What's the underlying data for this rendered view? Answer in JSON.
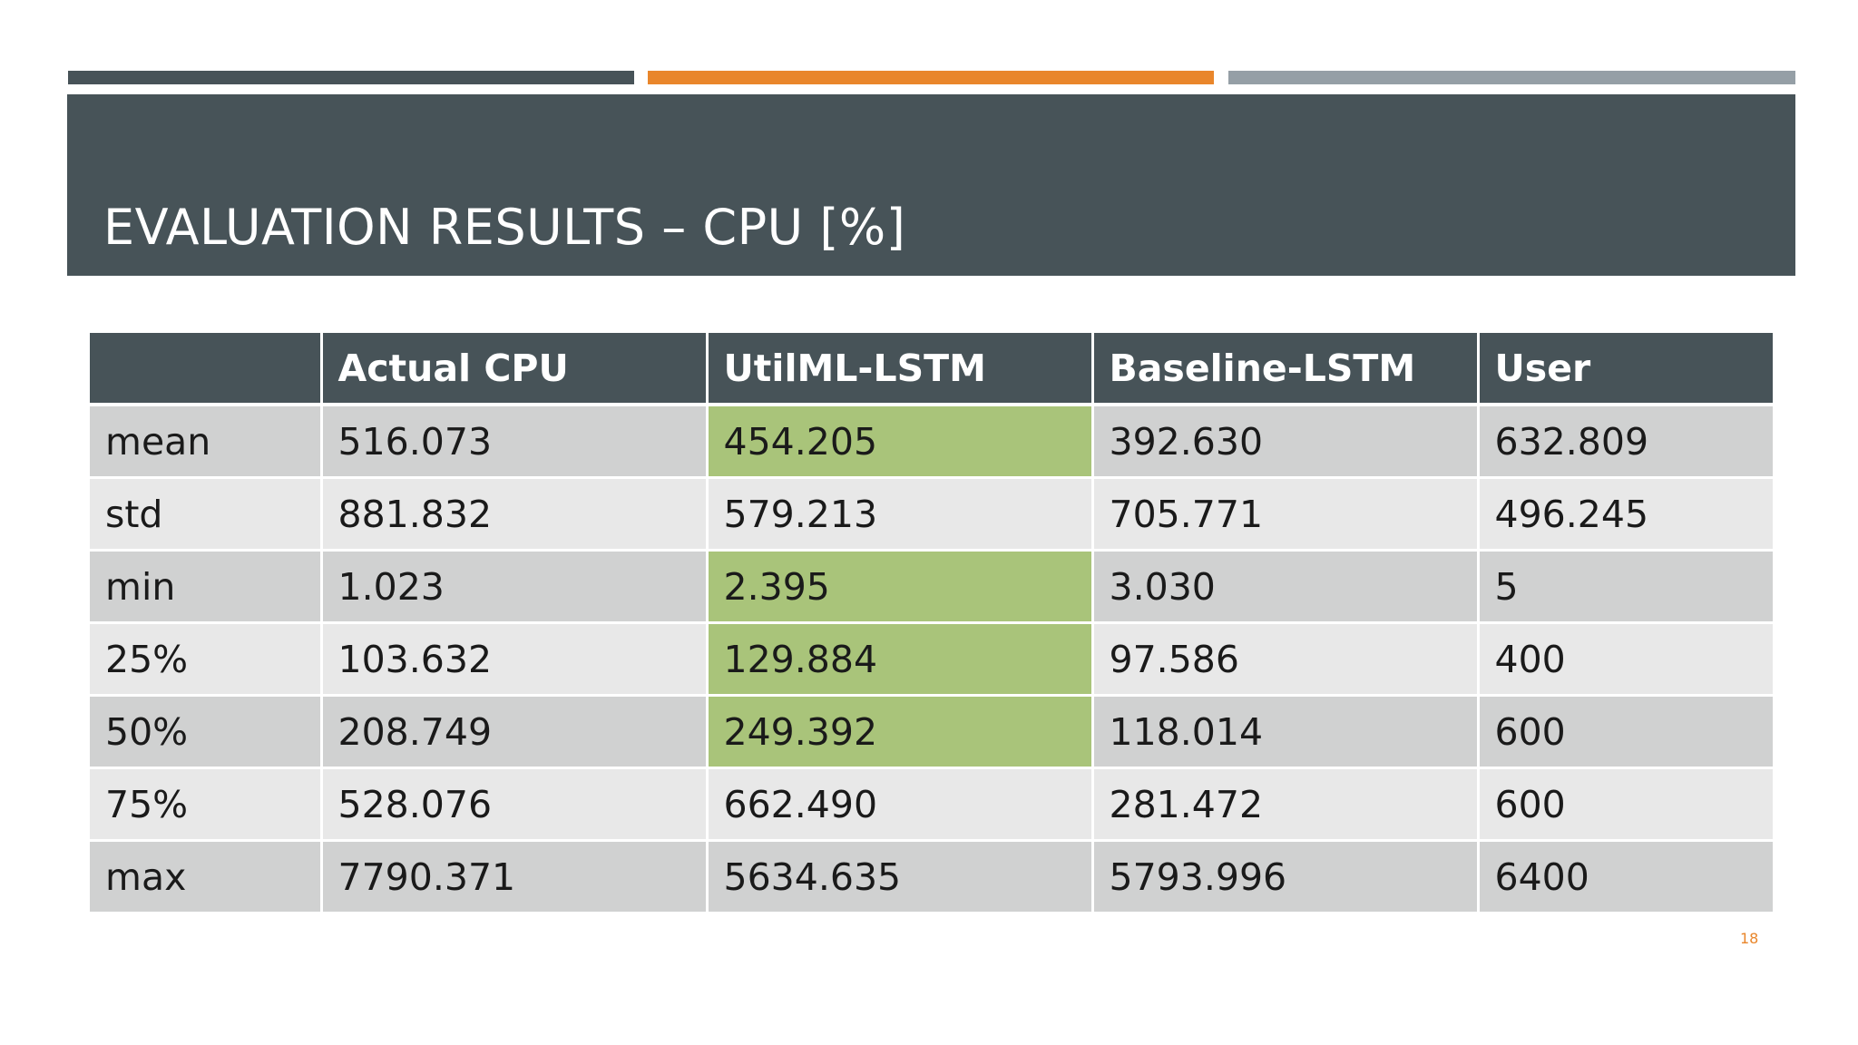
{
  "colors": {
    "dark": "#475358",
    "orange": "#E9862B",
    "gray_bar": "#959FA6",
    "row_odd": "#D0D1D1",
    "row_even": "#E8E8E8",
    "highlight": "#A9C47A",
    "page_number": "#E9862B"
  },
  "slide": {
    "title": "EVALUATION RESULTS – CPU [%]",
    "page_number": "18"
  },
  "table": {
    "headers": [
      "",
      "Actual CPU",
      "UtilML-LSTM",
      "Baseline-LSTM",
      "User"
    ],
    "rows": [
      {
        "cells": [
          "mean",
          "516.073",
          "454.205",
          "392.630",
          "632.809"
        ],
        "highlight_col": 2
      },
      {
        "cells": [
          "std",
          "881.832",
          "579.213",
          "705.771",
          "496.245"
        ],
        "highlight_col": null
      },
      {
        "cells": [
          "min",
          "1.023",
          "2.395",
          "3.030",
          "5"
        ],
        "highlight_col": 2
      },
      {
        "cells": [
          "25%",
          "103.632",
          "129.884",
          "97.586",
          "400"
        ],
        "highlight_col": 2
      },
      {
        "cells": [
          "50%",
          "208.749",
          "249.392",
          "118.014",
          "600"
        ],
        "highlight_col": 2
      },
      {
        "cells": [
          "75%",
          "528.076",
          "662.490",
          "281.472",
          "600"
        ],
        "highlight_col": null
      },
      {
        "cells": [
          "max",
          "7790.371",
          "5634.635",
          "5793.996",
          "6400"
        ],
        "highlight_col": null
      }
    ]
  }
}
